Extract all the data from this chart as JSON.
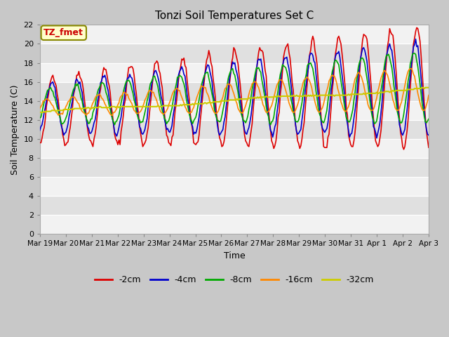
{
  "title": "Tonzi Soil Temperatures Set C",
  "xlabel": "Time",
  "ylabel": "Soil Temperature (C)",
  "annotation_text": "TZ_fmet",
  "annotation_bg": "#ffffcc",
  "annotation_border": "#888800",
  "annotation_text_color": "#cc0000",
  "ylim": [
    0,
    22
  ],
  "yticks": [
    0,
    2,
    4,
    6,
    8,
    10,
    12,
    14,
    16,
    18,
    20,
    22
  ],
  "lines": {
    "-2cm": {
      "color": "#dd0000",
      "linewidth": 1.2
    },
    "-4cm": {
      "color": "#0000cc",
      "linewidth": 1.2
    },
    "-8cm": {
      "color": "#00aa00",
      "linewidth": 1.2
    },
    "-16cm": {
      "color": "#ff8800",
      "linewidth": 1.2
    },
    "-32cm": {
      "color": "#cccc00",
      "linewidth": 1.5
    }
  },
  "x_tick_labels": [
    "Mar 19",
    "Mar 20",
    "Mar 21",
    "Mar 22",
    "Mar 23",
    "Mar 24",
    "Mar 25",
    "Mar 26",
    "Mar 27",
    "Mar 28",
    "Mar 29",
    "Mar 30",
    "Mar 31",
    "Apr 1",
    "Apr 2",
    "Apr 3"
  ]
}
